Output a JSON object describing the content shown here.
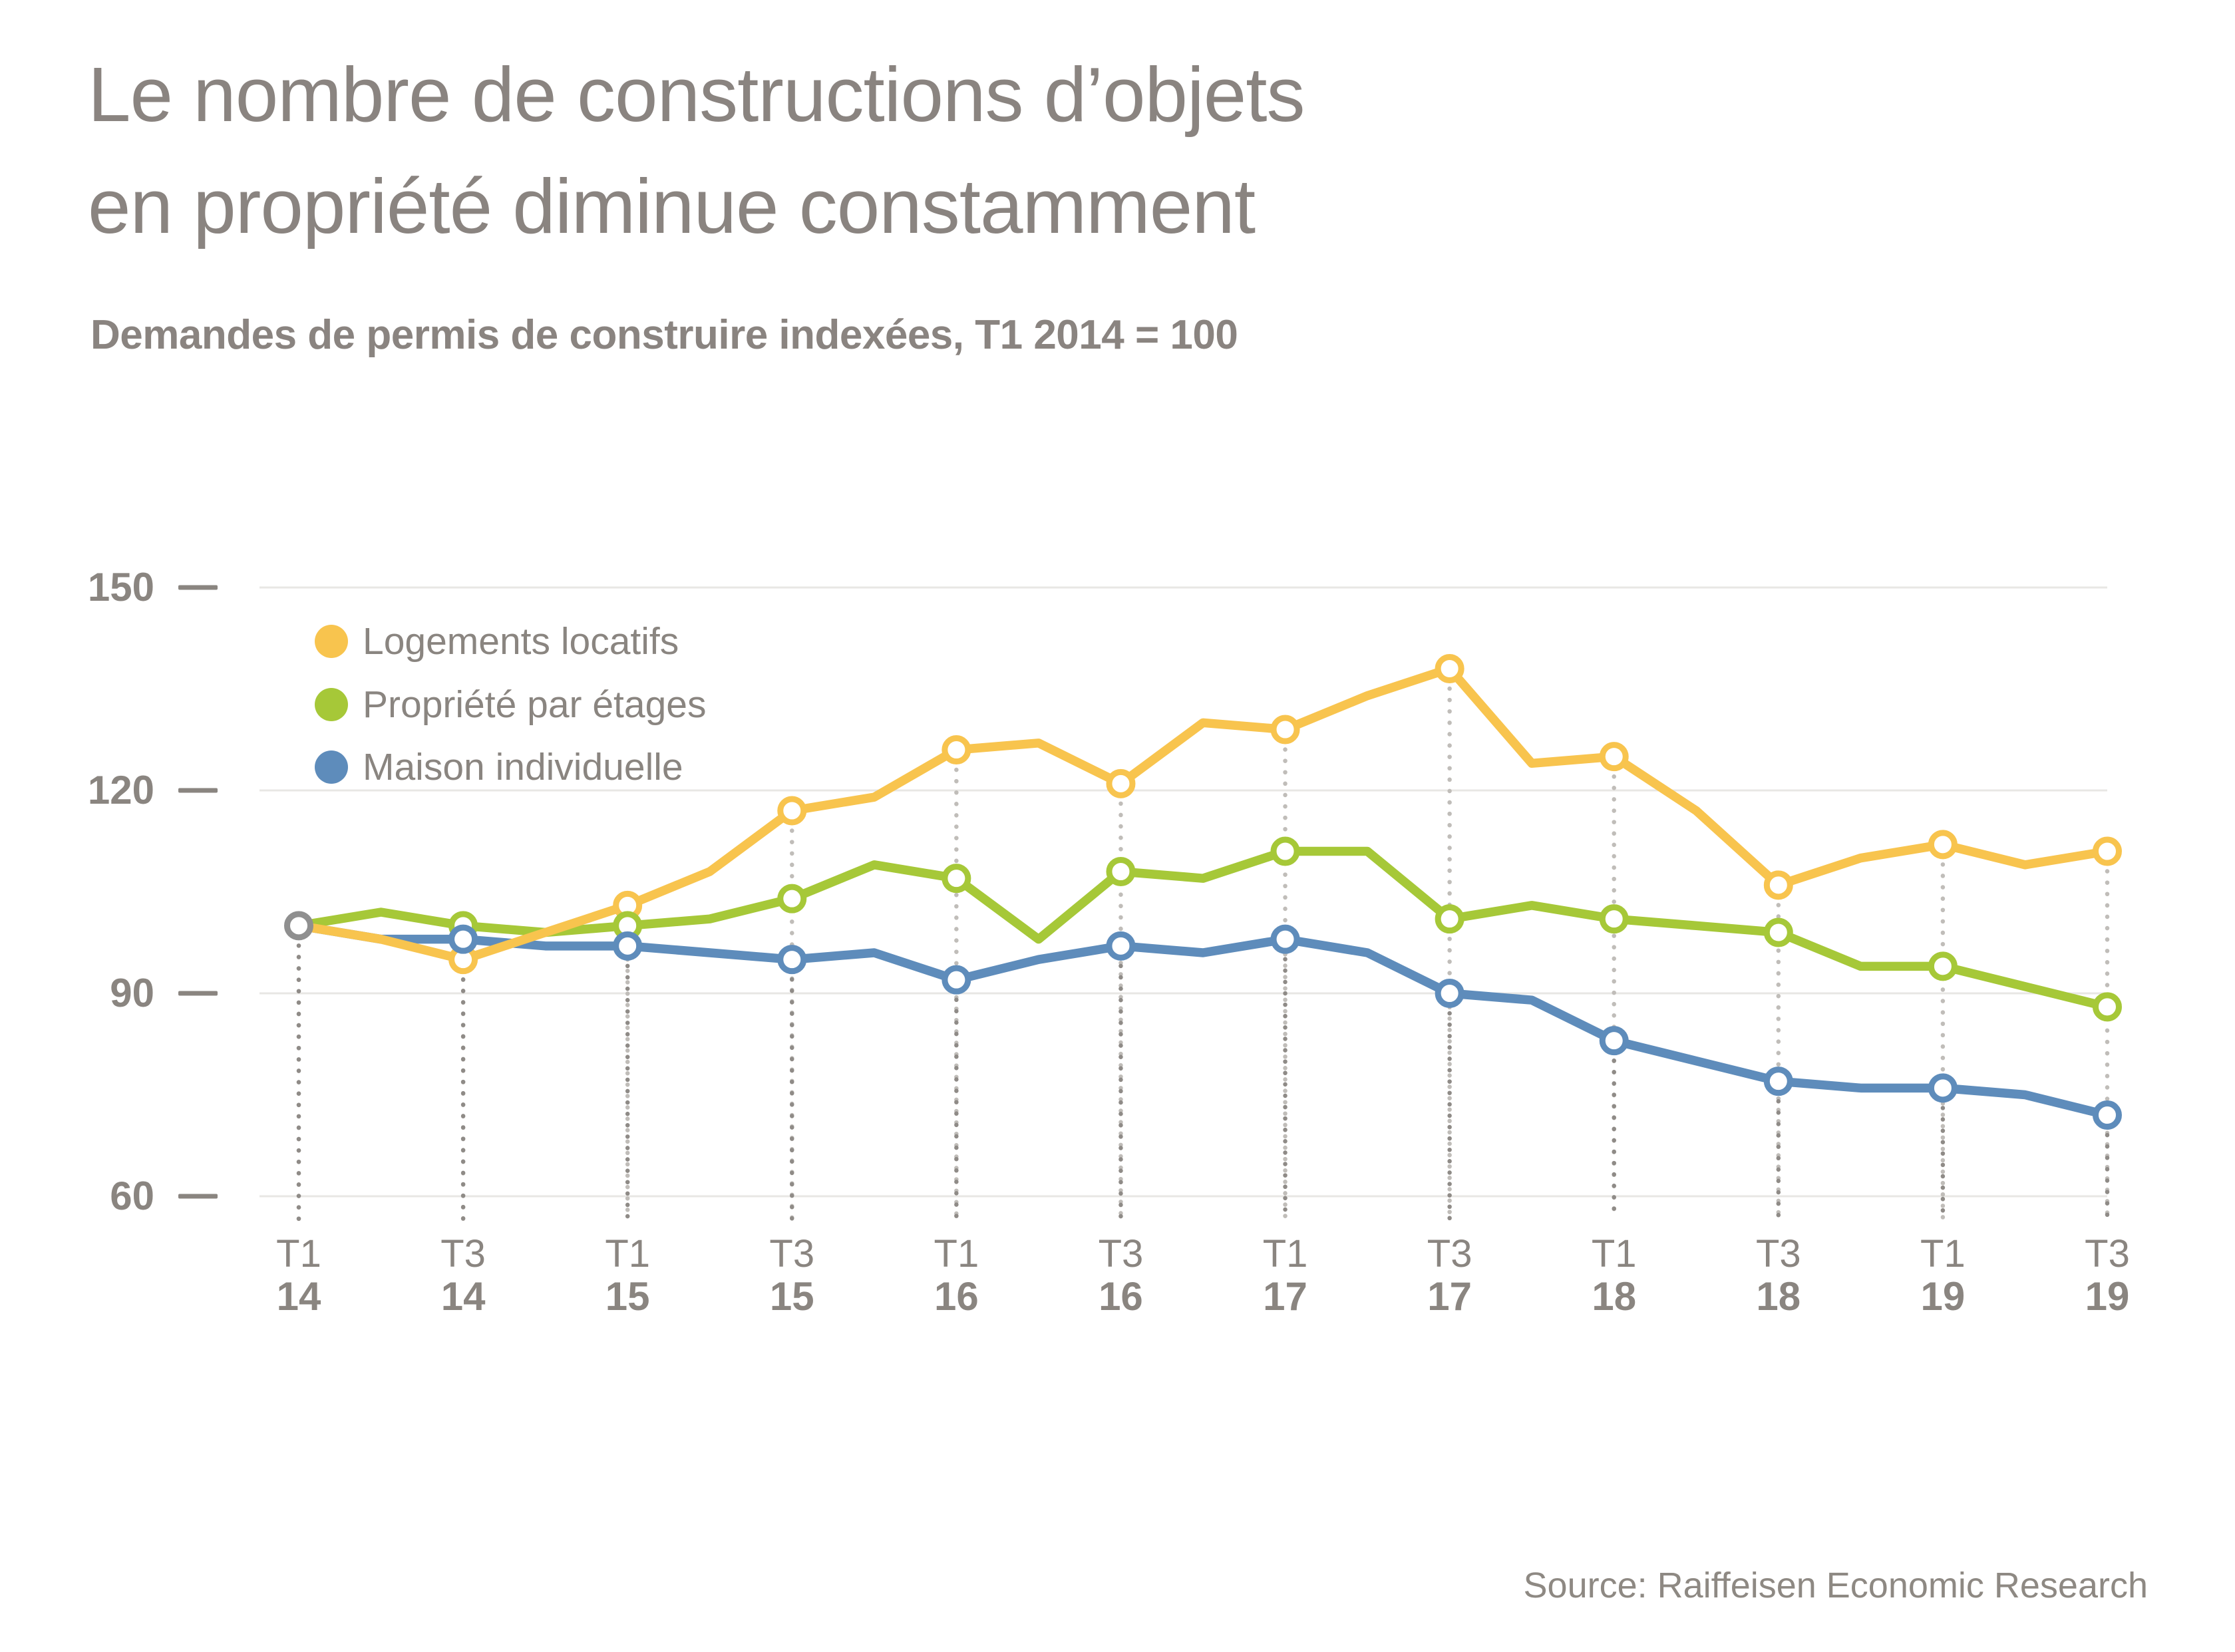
{
  "title": {
    "line1": "Le nombre de constructions d’objets",
    "line2": "en propriété diminue constamment"
  },
  "subtitle": "Demandes de permis de construire indexées, T1 2014 = 100",
  "source": "Source: Raiffeisen Economic Research",
  "colors": {
    "text": "#8A8580",
    "gridline": "#E8E7E4",
    "tick_dash": "#8A8580",
    "dot_guide_light": "#C0BDB9",
    "dot_guide_dark": "#8F8B87",
    "marker_fill": "#FFFFFF",
    "start_marker": "#8F8F8F",
    "series_yellow": "#F8C44E",
    "series_green": "#A6C838",
    "series_blue": "#5E8CBB"
  },
  "chart_data": {
    "type": "line",
    "title": "Le nombre de constructions d’objets en propriété diminue constamment",
    "subtitle": "Demandes de permis de construire indexées, T1 2014 = 100",
    "x": [
      "T1 14",
      "T2 14",
      "T3 14",
      "T4 14",
      "T1 15",
      "T2 15",
      "T3 15",
      "T4 15",
      "T1 16",
      "T2 16",
      "T3 16",
      "T4 16",
      "T1 17",
      "T2 17",
      "T3 17",
      "T4 17",
      "T1 18",
      "T2 18",
      "T3 18",
      "T4 18",
      "T1 19",
      "T2 19",
      "T3 19"
    ],
    "x_tick_labels": [
      {
        "quarter": "T1",
        "year": "14"
      },
      {
        "quarter": "T3",
        "year": "14"
      },
      {
        "quarter": "T1",
        "year": "15"
      },
      {
        "quarter": "T3",
        "year": "15"
      },
      {
        "quarter": "T1",
        "year": "16"
      },
      {
        "quarter": "T3",
        "year": "16"
      },
      {
        "quarter": "T1",
        "year": "17"
      },
      {
        "quarter": "T3",
        "year": "17"
      },
      {
        "quarter": "T1",
        "year": "18"
      },
      {
        "quarter": "T3",
        "year": "18"
      },
      {
        "quarter": "T1",
        "year": "19"
      },
      {
        "quarter": "T3",
        "year": "19"
      }
    ],
    "yticks": [
      150,
      120,
      90,
      60
    ],
    "ylim": [
      60,
      150
    ],
    "grid": "horizontal",
    "legend_position": "top-left-inside",
    "index_base_note": "T1 2014 = 100",
    "series": [
      {
        "name": "Logements locatifs",
        "color": "#F8C44E",
        "values": [
          100,
          98,
          95,
          99,
          103,
          108,
          117,
          119,
          126,
          127,
          121,
          130,
          129,
          134,
          138,
          124,
          125,
          117,
          106,
          110,
          112,
          109,
          111
        ]
      },
      {
        "name": "Propriété par étages",
        "color": "#A6C838",
        "values": [
          100,
          102,
          100,
          99,
          100,
          101,
          104,
          109,
          107,
          98,
          108,
          107,
          111,
          111,
          101,
          103,
          101,
          100,
          99,
          94,
          94,
          91,
          88
        ]
      },
      {
        "name": "Maison individuelle",
        "color": "#5E8CBB",
        "values": [
          100,
          98,
          98,
          97,
          97,
          96,
          95,
          96,
          92,
          95,
          97,
          96,
          98,
          96,
          90,
          89,
          83,
          80,
          77,
          76,
          76,
          75,
          72
        ]
      }
    ]
  }
}
